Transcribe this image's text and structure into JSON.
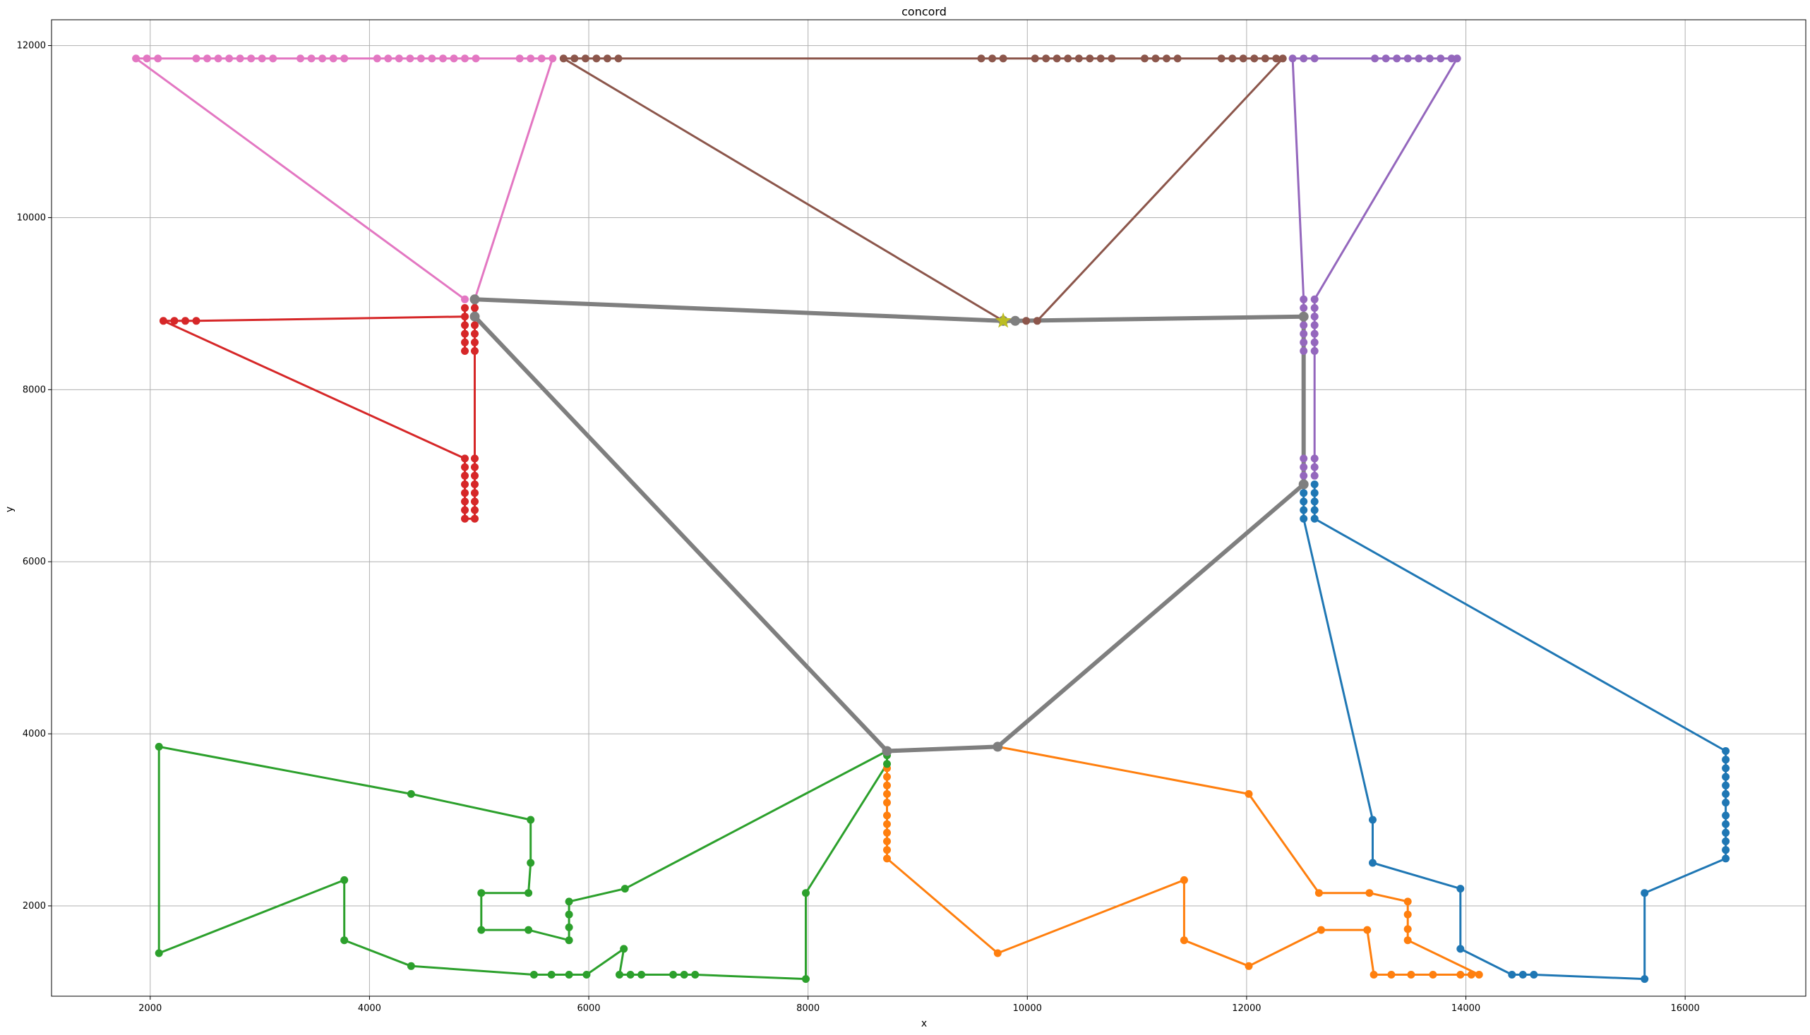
{
  "chart_data": {
    "type": "line",
    "title": "concord",
    "xlabel": "x",
    "ylabel": "y",
    "xlim": [
      1100,
      17100
    ],
    "ylim": [
      950,
      12300
    ],
    "xticks": [
      2000,
      4000,
      6000,
      8000,
      10000,
      12000,
      14000,
      16000
    ],
    "yticks": [
      2000,
      4000,
      6000,
      8000,
      10000,
      12000
    ],
    "grid": true,
    "colors": {
      "blue": "#1f77b4",
      "orange": "#ff7f0e",
      "green": "#2ca02c",
      "red": "#d62728",
      "purple": "#9467bd",
      "brown": "#8c564b",
      "pink": "#e377c2",
      "gray": "#7f7f7f",
      "olive": "#bcbd22"
    },
    "series": [
      {
        "color": "#1f77b4",
        "points": [
          [
            12520,
            6900
          ],
          [
            12520,
            6800
          ],
          [
            12520,
            6700
          ],
          [
            12520,
            6600
          ],
          [
            12520,
            6500
          ],
          [
            13150,
            3000
          ],
          [
            13150,
            2500
          ],
          [
            13950,
            2200
          ],
          [
            13950,
            1500
          ],
          [
            14420,
            1200
          ],
          [
            14520,
            1200
          ],
          [
            14620,
            1200
          ],
          [
            15630,
            1150
          ],
          [
            15630,
            2150
          ],
          [
            16370,
            2550
          ],
          [
            16370,
            2650
          ],
          [
            16370,
            2750
          ],
          [
            16370,
            2850
          ],
          [
            16370,
            2950
          ],
          [
            16370,
            3050
          ],
          [
            16370,
            3200
          ],
          [
            16370,
            3300
          ],
          [
            16370,
            3400
          ],
          [
            16370,
            3500
          ],
          [
            16370,
            3600
          ],
          [
            16370,
            3700
          ],
          [
            16370,
            3800
          ],
          [
            12620,
            6500
          ],
          [
            12620,
            6600
          ],
          [
            12620,
            6700
          ],
          [
            12620,
            6800
          ],
          [
            12620,
            6900
          ]
        ]
      },
      {
        "color": "#ff7f0e",
        "points": [
          [
            8720,
            3600
          ],
          [
            8720,
            3500
          ],
          [
            8720,
            3400
          ],
          [
            8720,
            3300
          ],
          [
            8720,
            3200
          ],
          [
            8720,
            3050
          ],
          [
            8720,
            2950
          ],
          [
            8720,
            2850
          ],
          [
            8720,
            2750
          ],
          [
            8720,
            2650
          ],
          [
            8720,
            2550
          ],
          [
            9730,
            1450
          ],
          [
            11430,
            2300
          ],
          [
            11430,
            1600
          ],
          [
            12020,
            1300
          ],
          [
            12680,
            1720
          ],
          [
            13100,
            1720
          ],
          [
            13160,
            1200
          ],
          [
            13320,
            1200
          ],
          [
            13500,
            1200
          ],
          [
            13700,
            1200
          ],
          [
            13950,
            1200
          ],
          [
            14050,
            1200
          ],
          [
            14120,
            1200
          ],
          [
            13470,
            1600
          ],
          [
            13470,
            1730
          ],
          [
            13470,
            1900
          ],
          [
            13470,
            2050
          ],
          [
            13120,
            2150
          ],
          [
            12660,
            2150
          ],
          [
            12020,
            3300
          ],
          [
            9730,
            3850
          ]
        ]
      },
      {
        "color": "#2ca02c",
        "points": [
          [
            8720,
            3750
          ],
          [
            8720,
            3650
          ],
          [
            7980,
            2150
          ],
          [
            7980,
            1150
          ],
          [
            6970,
            1200
          ],
          [
            6870,
            1200
          ],
          [
            6770,
            1200
          ],
          [
            6480,
            1200
          ],
          [
            6380,
            1200
          ],
          [
            6280,
            1200
          ],
          [
            6320,
            1500
          ],
          [
            5980,
            1200
          ],
          [
            5820,
            1200
          ],
          [
            5660,
            1200
          ],
          [
            5500,
            1200
          ],
          [
            4380,
            1300
          ],
          [
            3770,
            1600
          ],
          [
            3770,
            2300
          ],
          [
            2080,
            1450
          ],
          [
            2080,
            3850
          ],
          [
            4380,
            3300
          ],
          [
            5470,
            3000
          ],
          [
            5470,
            2500
          ],
          [
            5450,
            2150
          ],
          [
            5020,
            2150
          ],
          [
            5020,
            1720
          ],
          [
            5450,
            1720
          ],
          [
            5820,
            1600
          ],
          [
            5820,
            1750
          ],
          [
            5820,
            1900
          ],
          [
            5820,
            2050
          ],
          [
            6330,
            2200
          ],
          [
            8720,
            3800
          ]
        ]
      },
      {
        "color": "#d62728",
        "points": [
          [
            4960,
            8850
          ],
          [
            4960,
            8950
          ],
          [
            4960,
            8750
          ],
          [
            4960,
            8650
          ],
          [
            4960,
            8550
          ],
          [
            4960,
            8450
          ],
          [
            4960,
            7200
          ],
          [
            4960,
            7100
          ],
          [
            4960,
            7000
          ],
          [
            4960,
            6900
          ],
          [
            4960,
            6800
          ],
          [
            4960,
            6700
          ],
          [
            4960,
            6600
          ],
          [
            4960,
            6500
          ],
          [
            4870,
            6500
          ],
          [
            4870,
            6600
          ],
          [
            4870,
            6700
          ],
          [
            4870,
            6800
          ],
          [
            4870,
            6900
          ],
          [
            4870,
            7000
          ],
          [
            4870,
            7100
          ],
          [
            4870,
            7200
          ],
          [
            2120,
            8800
          ],
          [
            2220,
            8800
          ],
          [
            2320,
            8800
          ],
          [
            2420,
            8800
          ],
          [
            4870,
            8850
          ],
          [
            4870,
            8950
          ],
          [
            4870,
            8750
          ],
          [
            4870,
            8650
          ],
          [
            4870,
            8550
          ],
          [
            4870,
            8450
          ]
        ]
      },
      {
        "color": "#9467bd",
        "points": [
          [
            12520,
            7000
          ],
          [
            12520,
            7100
          ],
          [
            12520,
            7200
          ],
          [
            12520,
            8450
          ],
          [
            12520,
            8550
          ],
          [
            12520,
            8650
          ],
          [
            12520,
            8750
          ],
          [
            12520,
            8850
          ],
          [
            12520,
            8950
          ],
          [
            12520,
            9050
          ],
          [
            12420,
            11850
          ],
          [
            12520,
            11850
          ],
          [
            12620,
            11850
          ],
          [
            13170,
            11850
          ],
          [
            13270,
            11850
          ],
          [
            13370,
            11850
          ],
          [
            13470,
            11850
          ],
          [
            13570,
            11850
          ],
          [
            13670,
            11850
          ],
          [
            13770,
            11850
          ],
          [
            13870,
            11850
          ],
          [
            13920,
            11850
          ],
          [
            12620,
            9050
          ],
          [
            12620,
            8950
          ],
          [
            12620,
            8850
          ],
          [
            12620,
            8750
          ],
          [
            12620,
            8650
          ],
          [
            12620,
            8550
          ],
          [
            12620,
            8450
          ],
          [
            12620,
            7200
          ],
          [
            12620,
            7100
          ],
          [
            12620,
            7000
          ]
        ]
      },
      {
        "color": "#8c564b",
        "points": [
          [
            9780,
            8800
          ],
          [
            5770,
            11850
          ],
          [
            5870,
            11850
          ],
          [
            5970,
            11850
          ],
          [
            6070,
            11850
          ],
          [
            6170,
            11850
          ],
          [
            6270,
            11850
          ],
          [
            9580,
            11850
          ],
          [
            9680,
            11850
          ],
          [
            9780,
            11850
          ],
          [
            10070,
            11850
          ],
          [
            10170,
            11850
          ],
          [
            10270,
            11850
          ],
          [
            10370,
            11850
          ],
          [
            10470,
            11850
          ],
          [
            10570,
            11850
          ],
          [
            10670,
            11850
          ],
          [
            10770,
            11850
          ],
          [
            11070,
            11850
          ],
          [
            11170,
            11850
          ],
          [
            11270,
            11850
          ],
          [
            11370,
            11850
          ],
          [
            11770,
            11850
          ],
          [
            11870,
            11850
          ],
          [
            11970,
            11850
          ],
          [
            12070,
            11850
          ],
          [
            12170,
            11850
          ],
          [
            12270,
            11850
          ],
          [
            12330,
            11850
          ],
          [
            10090,
            8800
          ],
          [
            9990,
            8800
          ],
          [
            9890,
            8800
          ]
        ]
      },
      {
        "color": "#e377c2",
        "points": [
          [
            4870,
            9050
          ],
          [
            1870,
            11850
          ],
          [
            1970,
            11850
          ],
          [
            2070,
            11850
          ],
          [
            2420,
            11850
          ],
          [
            2520,
            11850
          ],
          [
            2620,
            11850
          ],
          [
            2720,
            11850
          ],
          [
            2820,
            11850
          ],
          [
            2920,
            11850
          ],
          [
            3020,
            11850
          ],
          [
            3120,
            11850
          ],
          [
            3370,
            11850
          ],
          [
            3470,
            11850
          ],
          [
            3570,
            11850
          ],
          [
            3670,
            11850
          ],
          [
            3770,
            11850
          ],
          [
            4070,
            11850
          ],
          [
            4170,
            11850
          ],
          [
            4270,
            11850
          ],
          [
            4370,
            11850
          ],
          [
            4470,
            11850
          ],
          [
            4570,
            11850
          ],
          [
            4670,
            11850
          ],
          [
            4770,
            11850
          ],
          [
            4870,
            11850
          ],
          [
            4970,
            11850
          ],
          [
            5370,
            11850
          ],
          [
            5470,
            11850
          ],
          [
            5570,
            11850
          ],
          [
            5670,
            11850
          ],
          [
            4960,
            9050
          ]
        ]
      },
      {
        "color": "#7f7f7f",
        "bold": true,
        "points": [
          [
            9780,
            8800
          ],
          [
            9890,
            8800
          ],
          [
            12520,
            8850
          ],
          [
            12520,
            6900
          ],
          [
            9730,
            3850
          ],
          [
            8720,
            3800
          ],
          [
            4960,
            8850
          ],
          [
            4960,
            9050
          ],
          [
            9780,
            8800
          ]
        ]
      }
    ],
    "depot": {
      "color": "#bcbd22",
      "point": [
        9780,
        8800
      ]
    }
  }
}
